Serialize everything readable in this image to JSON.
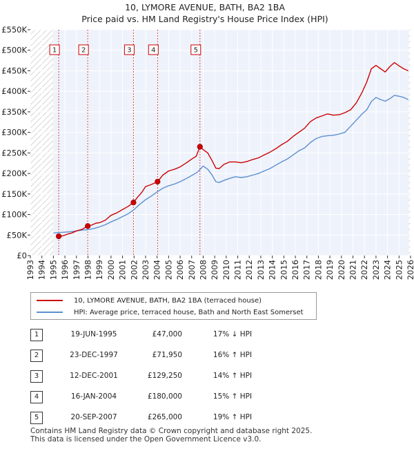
{
  "chart_data": {
    "type": "line",
    "title": "10, LYMORE AVENUE, BATH, BA2 1BA",
    "subtitle": "Price paid vs. HM Land Registry's House Price Index (HPI)",
    "xlabel": "",
    "ylabel": "",
    "xlim": [
      1993,
      2026
    ],
    "ylim": [
      0,
      550000
    ],
    "grid": true,
    "x_ticks": [
      "1993",
      "1994",
      "1995",
      "1996",
      "1997",
      "1998",
      "1999",
      "2000",
      "2001",
      "2002",
      "2003",
      "2004",
      "2005",
      "2006",
      "2007",
      "2008",
      "2009",
      "2010",
      "2011",
      "2012",
      "2013",
      "2014",
      "2015",
      "2016",
      "2017",
      "2018",
      "2019",
      "2020",
      "2021",
      "2022",
      "2023",
      "2024",
      "2025",
      "2026"
    ],
    "y_ticks": [
      {
        "value": 0,
        "label": "£0"
      },
      {
        "value": 50000,
        "label": "£50K"
      },
      {
        "value": 100000,
        "label": "£100K"
      },
      {
        "value": 150000,
        "label": "£150K"
      },
      {
        "value": 200000,
        "label": "£200K"
      },
      {
        "value": 250000,
        "label": "£250K"
      },
      {
        "value": 300000,
        "label": "£300K"
      },
      {
        "value": 350000,
        "label": "£350K"
      },
      {
        "value": 400000,
        "label": "£400K"
      },
      {
        "value": 450000,
        "label": "£450K"
      },
      {
        "value": 500000,
        "label": "£500K"
      },
      {
        "value": 550000,
        "label": "£550K"
      }
    ],
    "series": [
      {
        "name": "10, LYMORE AVENUE, BATH, BA2 1BA (terraced house)",
        "color": "#cc0000",
        "x": [
          1995.46,
          1995.8,
          1996.2,
          1996.6,
          1997.0,
          1997.5,
          1997.98,
          1998.3,
          1998.7,
          1999.0,
          1999.5,
          2000.0,
          2000.5,
          2001.0,
          2001.5,
          2001.95,
          2002.3,
          2002.7,
          2003.0,
          2003.5,
          2004.04,
          2004.5,
          2005.0,
          2005.5,
          2006.0,
          2006.5,
          2007.0,
          2007.4,
          2007.72,
          2008.0,
          2008.4,
          2008.8,
          2009.1,
          2009.4,
          2009.8,
          2010.3,
          2010.8,
          2011.3,
          2011.8,
          2012.3,
          2012.8,
          2013.3,
          2013.8,
          2014.3,
          2014.8,
          2015.3,
          2015.8,
          2016.3,
          2016.8,
          2017.3,
          2017.8,
          2018.3,
          2018.8,
          2019.3,
          2019.8,
          2020.3,
          2020.8,
          2021.3,
          2021.8,
          2022.2,
          2022.6,
          2023.0,
          2023.4,
          2023.8,
          2024.2,
          2024.6,
          2025.0,
          2025.4,
          2025.8
        ],
        "values": [
          47000,
          48000,
          52000,
          55000,
          60000,
          64000,
          71950,
          74000,
          79000,
          80000,
          86000,
          98000,
          104000,
          112000,
          120000,
          129250,
          142000,
          155000,
          168000,
          173000,
          180000,
          196000,
          206000,
          210000,
          216000,
          225000,
          235000,
          242000,
          265000,
          258000,
          250000,
          230000,
          213000,
          212000,
          222000,
          228000,
          228000,
          226000,
          229000,
          234000,
          238000,
          245000,
          252000,
          260000,
          270000,
          278000,
          290000,
          300000,
          310000,
          326000,
          335000,
          340000,
          345000,
          342000,
          343000,
          348000,
          355000,
          372000,
          398000,
          423000,
          455000,
          463000,
          455000,
          447000,
          460000,
          470000,
          462000,
          455000,
          450000
        ]
      },
      {
        "name": "HPI: Average price, terraced house, Bath and North East Somerset",
        "color": "#5b8fd0",
        "x": [
          1995.0,
          1995.5,
          1996.0,
          1996.5,
          1997.0,
          1997.5,
          1998.0,
          1998.5,
          1999.0,
          1999.5,
          2000.0,
          2000.5,
          2001.0,
          2001.5,
          2002.0,
          2002.5,
          2003.0,
          2003.5,
          2004.0,
          2004.5,
          2005.0,
          2005.5,
          2006.0,
          2006.5,
          2007.0,
          2007.5,
          2008.0,
          2008.4,
          2008.8,
          2009.1,
          2009.4,
          2009.8,
          2010.3,
          2010.8,
          2011.3,
          2011.8,
          2012.3,
          2012.8,
          2013.3,
          2013.8,
          2014.3,
          2014.8,
          2015.3,
          2015.8,
          2016.3,
          2016.8,
          2017.3,
          2017.8,
          2018.3,
          2018.8,
          2019.3,
          2019.8,
          2020.3,
          2020.8,
          2021.3,
          2021.8,
          2022.2,
          2022.6,
          2023.0,
          2023.4,
          2023.8,
          2024.2,
          2024.6,
          2025.0,
          2025.4,
          2025.8
        ],
        "values": [
          55000,
          56000,
          57000,
          58000,
          60000,
          62000,
          63000,
          66000,
          70000,
          75000,
          82000,
          88000,
          95000,
          102000,
          112000,
          125000,
          136000,
          145000,
          155000,
          164000,
          170000,
          174000,
          180000,
          187000,
          195000,
          203000,
          218000,
          210000,
          195000,
          180000,
          178000,
          183000,
          188000,
          192000,
          190000,
          192000,
          196000,
          200000,
          206000,
          212000,
          220000,
          228000,
          235000,
          245000,
          255000,
          262000,
          275000,
          285000,
          290000,
          292000,
          293000,
          296000,
          300000,
          315000,
          330000,
          345000,
          355000,
          375000,
          385000,
          380000,
          376000,
          382000,
          390000,
          388000,
          385000,
          380000
        ]
      }
    ],
    "sales": [
      {
        "n": "1",
        "x": 1995.46,
        "value": 47000
      },
      {
        "n": "2",
        "x": 1997.98,
        "value": 71950
      },
      {
        "n": "3",
        "x": 2001.95,
        "value": 129250
      },
      {
        "n": "4",
        "x": 2004.04,
        "value": 180000
      },
      {
        "n": "5",
        "x": 2007.72,
        "value": 265000
      }
    ]
  },
  "legend": {
    "property_label": "10, LYMORE AVENUE, BATH, BA2 1BA (terraced house)",
    "hpi_label": "HPI: Average price, terraced house, Bath and North East Somerset",
    "property_color": "#cc0000",
    "hpi_color": "#5b8fd0"
  },
  "table": [
    {
      "n": "1",
      "date": "19-JUN-1995",
      "price": "£47,000",
      "hpi": "17% ↓ HPI"
    },
    {
      "n": "2",
      "date": "23-DEC-1997",
      "price": "£71,950",
      "hpi": "16% ↑ HPI"
    },
    {
      "n": "3",
      "date": "12-DEC-2001",
      "price": "£129,250",
      "hpi": "14% ↑ HPI"
    },
    {
      "n": "4",
      "date": "16-JAN-2004",
      "price": "£180,000",
      "hpi": "15% ↑ HPI"
    },
    {
      "n": "5",
      "date": "20-SEP-2007",
      "price": "£265,000",
      "hpi": "19% ↑ HPI"
    }
  ],
  "footer": {
    "line1": "Contains HM Land Registry data © Crown copyright and database right 2025.",
    "line2": "This data is licensed under the Open Government Licence v3.0."
  }
}
